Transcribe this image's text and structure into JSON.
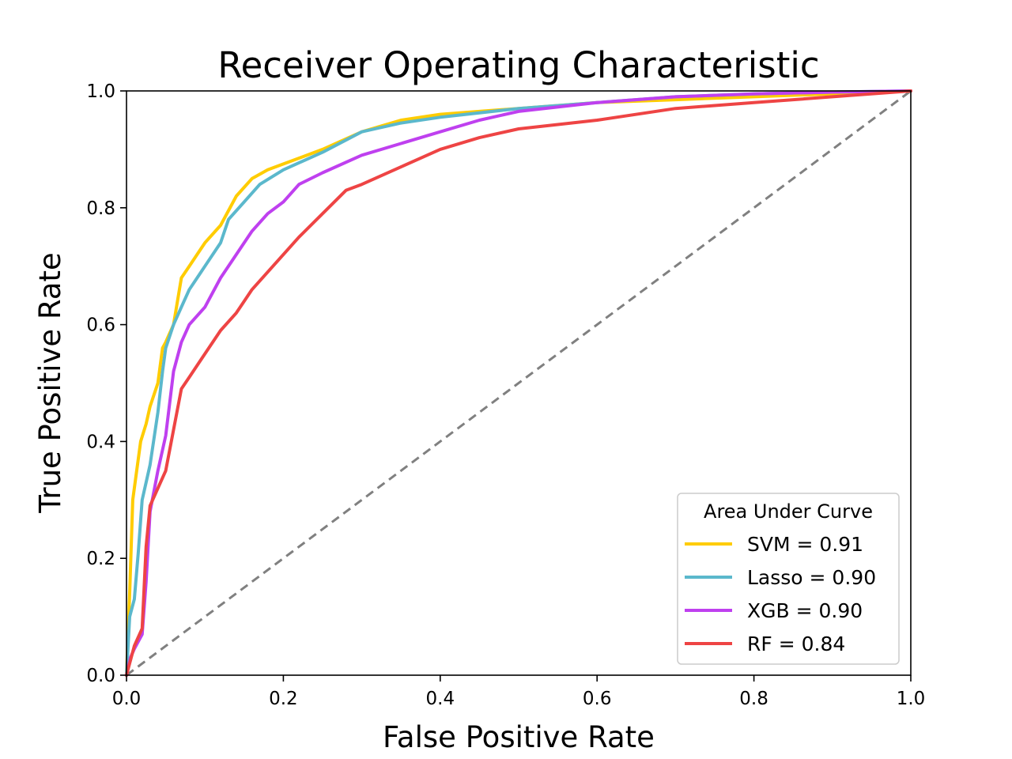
{
  "chart_data": {
    "type": "line",
    "title": "Receiver Operating Characteristic",
    "xlabel": "False Positive Rate",
    "ylabel": "True Positive Rate",
    "xlim": [
      0,
      1
    ],
    "ylim": [
      0,
      1
    ],
    "xticks": [
      "0.0",
      "0.2",
      "0.4",
      "0.6",
      "0.8",
      "1.0"
    ],
    "yticks": [
      "0.0",
      "0.2",
      "0.4",
      "0.6",
      "0.8",
      "1.0"
    ],
    "grid": false,
    "legend": {
      "title": "Area Under Curve",
      "placement": "bottom-right"
    },
    "reference_line": {
      "style": "dashed",
      "color": "#808080",
      "x": [
        0,
        1
      ],
      "y": [
        0,
        1
      ]
    },
    "series": [
      {
        "name": "SVM = 0.91",
        "color": "#FFCC00",
        "x": [
          0,
          0.004,
          0.008,
          0.012,
          0.018,
          0.025,
          0.03,
          0.04,
          0.046,
          0.05,
          0.06,
          0.07,
          0.08,
          0.1,
          0.12,
          0.14,
          0.16,
          0.18,
          0.2,
          0.25,
          0.3,
          0.35,
          0.4,
          0.5,
          0.6,
          0.7,
          0.8,
          0.9,
          1.0
        ],
        "y": [
          0,
          0.14,
          0.3,
          0.34,
          0.4,
          0.43,
          0.46,
          0.5,
          0.56,
          0.57,
          0.6,
          0.68,
          0.7,
          0.74,
          0.77,
          0.82,
          0.85,
          0.865,
          0.875,
          0.9,
          0.93,
          0.95,
          0.96,
          0.97,
          0.98,
          0.985,
          0.99,
          0.995,
          1.0
        ]
      },
      {
        "name": "Lasso = 0.90",
        "color": "#5BB8CC",
        "x": [
          0,
          0.004,
          0.01,
          0.015,
          0.02,
          0.03,
          0.04,
          0.046,
          0.05,
          0.06,
          0.07,
          0.08,
          0.1,
          0.12,
          0.13,
          0.15,
          0.17,
          0.2,
          0.25,
          0.3,
          0.35,
          0.4,
          0.5,
          0.6,
          0.7,
          0.8,
          0.9,
          1.0
        ],
        "y": [
          0,
          0.1,
          0.13,
          0.21,
          0.3,
          0.36,
          0.45,
          0.52,
          0.56,
          0.6,
          0.63,
          0.66,
          0.7,
          0.74,
          0.78,
          0.81,
          0.84,
          0.865,
          0.895,
          0.93,
          0.945,
          0.955,
          0.97,
          0.98,
          0.99,
          0.995,
          0.998,
          1.0
        ]
      },
      {
        "name": "XGB = 0.90",
        "color": "#BF40EF",
        "x": [
          0,
          0.005,
          0.01,
          0.02,
          0.025,
          0.03,
          0.04,
          0.05,
          0.06,
          0.07,
          0.08,
          0.1,
          0.12,
          0.14,
          0.16,
          0.18,
          0.2,
          0.22,
          0.25,
          0.3,
          0.35,
          0.4,
          0.45,
          0.5,
          0.6,
          0.7,
          0.8,
          0.9,
          1.0
        ],
        "y": [
          0,
          0.03,
          0.045,
          0.07,
          0.16,
          0.28,
          0.35,
          0.41,
          0.52,
          0.57,
          0.6,
          0.63,
          0.68,
          0.72,
          0.76,
          0.79,
          0.81,
          0.84,
          0.86,
          0.89,
          0.91,
          0.93,
          0.95,
          0.965,
          0.98,
          0.99,
          0.995,
          0.998,
          1.0
        ]
      },
      {
        "name": "RF = 0.84",
        "color": "#EE4444",
        "x": [
          0,
          0.01,
          0.02,
          0.025,
          0.03,
          0.04,
          0.05,
          0.06,
          0.07,
          0.08,
          0.1,
          0.12,
          0.14,
          0.16,
          0.18,
          0.2,
          0.22,
          0.25,
          0.28,
          0.3,
          0.35,
          0.4,
          0.45,
          0.5,
          0.6,
          0.7,
          0.8,
          0.9,
          1.0
        ],
        "y": [
          0,
          0.05,
          0.08,
          0.22,
          0.29,
          0.32,
          0.35,
          0.42,
          0.49,
          0.51,
          0.55,
          0.59,
          0.62,
          0.66,
          0.69,
          0.72,
          0.75,
          0.79,
          0.83,
          0.84,
          0.87,
          0.9,
          0.92,
          0.935,
          0.95,
          0.97,
          0.98,
          0.99,
          1.0
        ]
      }
    ]
  }
}
